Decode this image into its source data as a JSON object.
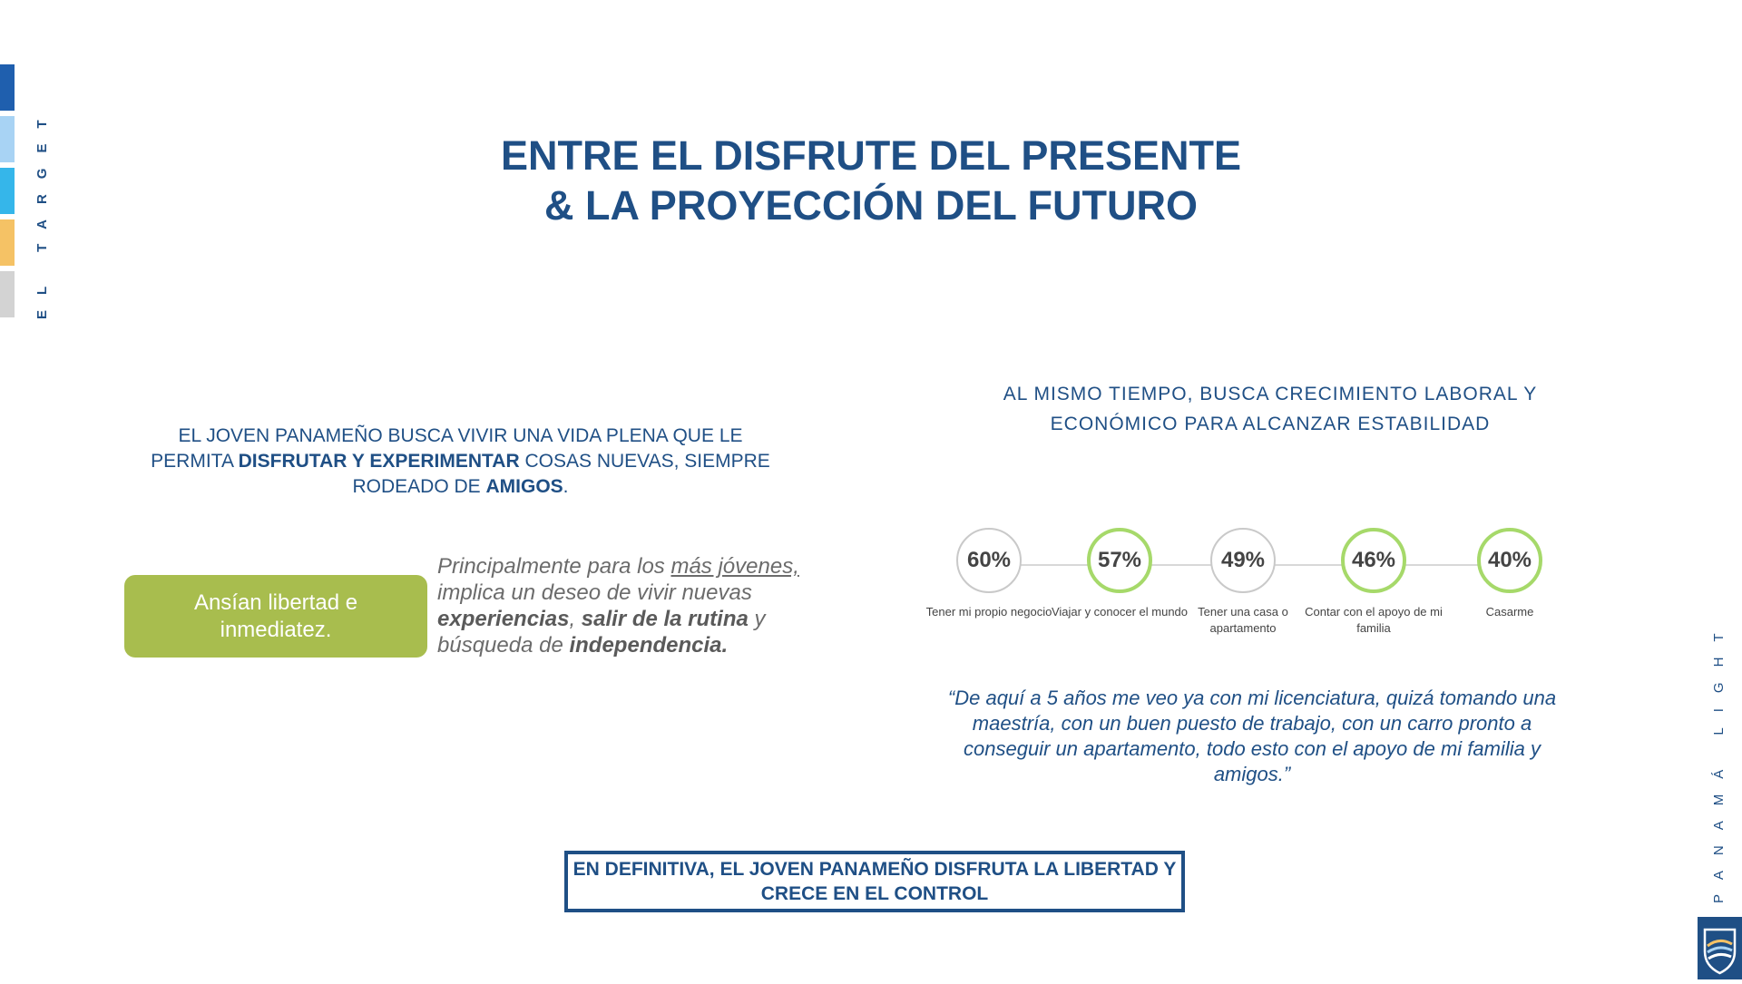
{
  "side_tab": {
    "label": "EL TARGET"
  },
  "side_bar_colors": [
    "#1f5fae",
    "#a8d3f4",
    "#35b6ea",
    "#f5c265",
    "#d3d3d3"
  ],
  "brand_tab": {
    "label": "PANAMÁ LIGHT"
  },
  "title": {
    "line1": "ENTRE EL DISFRUTE DEL PRESENTE",
    "line2": "& LA PROYECCIÓN DEL FUTURO"
  },
  "intro": {
    "p1": "EL JOVEN PANAMEÑO BUSCA VIVIR UNA VIDA PLENA QUE LE PERMITA ",
    "b1": "DISFRUTAR Y EXPERIMENTAR",
    "p2": " COSAS NUEVAS, SIEMPRE RODEADO DE ",
    "b2": "AMIGOS",
    "p3": "."
  },
  "green_box": {
    "text": "Ansían libertad e inmediatez."
  },
  "young_text": {
    "t1": "Principalmente para los ",
    "u1": "más jóvenes,",
    "t2": " implica un deseo de vivir nuevas ",
    "b1": "experiencias",
    "t3": ", ",
    "b2": "salir de la rutina",
    "t4": " y búsqueda de ",
    "b3": "independencia."
  },
  "right_heading": "AL MISMO TIEMPO, BUSCA CRECIMIENTO LABORAL Y ECONÓMICO PARA ALCANZAR ESTABILIDAD",
  "stats": [
    {
      "value": "60%",
      "label": "Tener mi propio negocio",
      "highlight": false
    },
    {
      "value": "57%",
      "label": "Viajar y conocer el mundo",
      "highlight": true
    },
    {
      "value": "49%",
      "label": "Tener una casa o apartamento",
      "highlight": false
    },
    {
      "value": "46%",
      "label": "Contar con el apoyo de mi familia",
      "highlight": true
    },
    {
      "value": "40%",
      "label": "Casarme",
      "highlight": true
    }
  ],
  "quote": "“De aquí a 5 años me veo ya con mi licenciatura, quizá tomando una maestría, con un buen puesto de trabajo, con un carro pronto a conseguir un apartamento, todo esto con el apoyo de mi familia y amigos.”",
  "conclusion": "EN DEFINITIVA, EL JOVEN PANAMEÑO DISFRUTA LA LIBERTAD Y CRECE EN EL CONTROL"
}
